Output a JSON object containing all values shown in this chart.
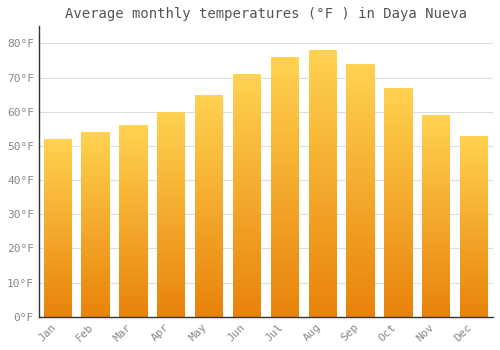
{
  "title": "Average monthly temperatures (°F ) in Daya Nueva",
  "months": [
    "Jan",
    "Feb",
    "Mar",
    "Apr",
    "May",
    "Jun",
    "Jul",
    "Aug",
    "Sep",
    "Oct",
    "Nov",
    "Dec"
  ],
  "values": [
    52,
    54,
    56,
    60,
    65,
    71,
    76,
    78,
    74,
    67,
    59,
    53
  ],
  "bar_color_bottom": "#E8820A",
  "bar_color_top": "#FFD966",
  "background_color": "#ffffff",
  "plot_bg_color": "#ffffff",
  "ylim": [
    0,
    85
  ],
  "yticks": [
    0,
    10,
    20,
    30,
    40,
    50,
    60,
    70,
    80
  ],
  "ytick_labels": [
    "0°F",
    "10°F",
    "20°F",
    "30°F",
    "40°F",
    "50°F",
    "60°F",
    "70°F",
    "80°F"
  ],
  "title_fontsize": 10,
  "tick_fontsize": 8,
  "grid_color": "#dddddd",
  "spine_color": "#333333",
  "tick_color": "#888888"
}
